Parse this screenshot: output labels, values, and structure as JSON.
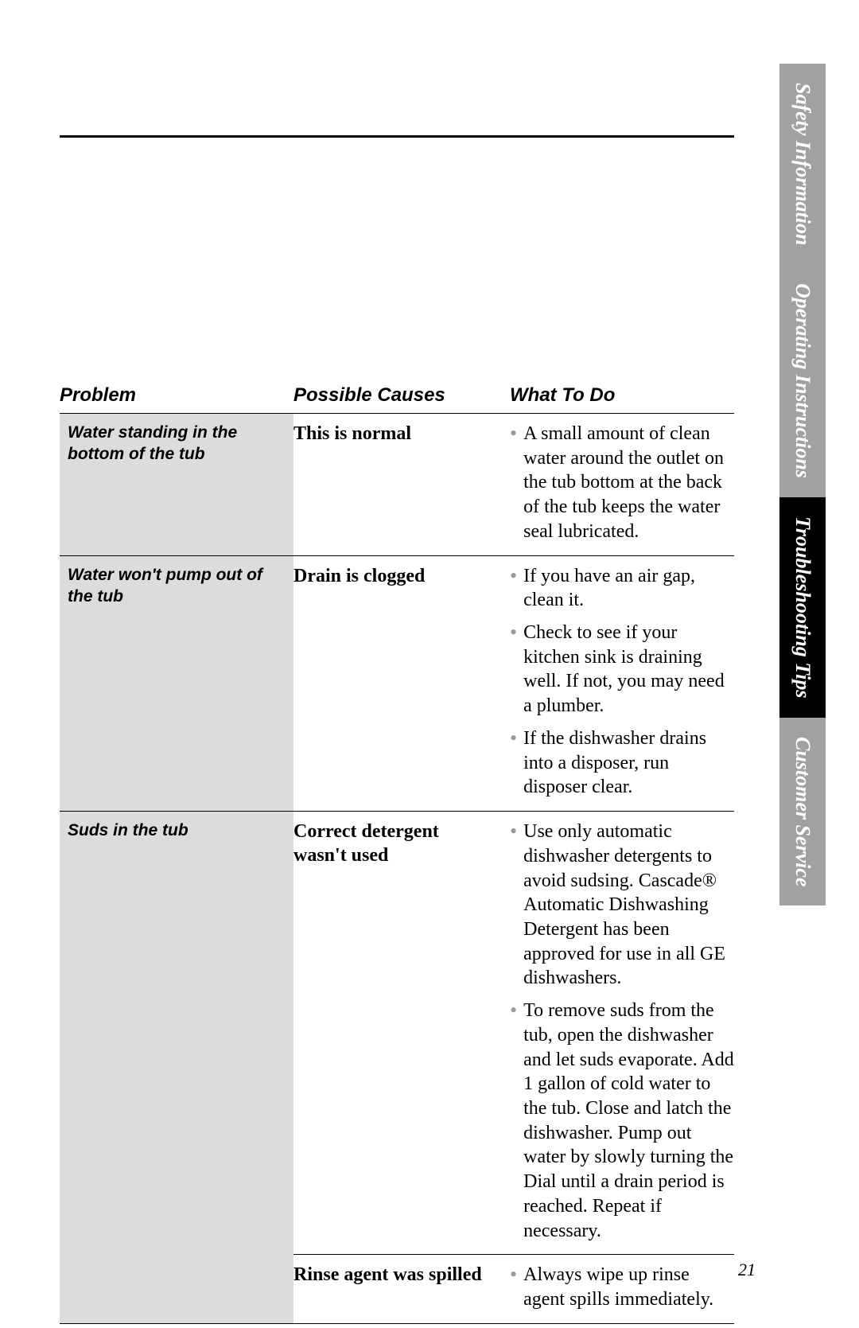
{
  "side_tabs": {
    "safety": "Safety Information",
    "operating": "Operating Instructions",
    "troubleshooting": "Troubleshooting Tips",
    "customer": "Customer Service"
  },
  "headers": {
    "problem": "Problem",
    "causes": "Possible Causes",
    "todo": "What To Do"
  },
  "rows": [
    {
      "problem": "Water standing in the bottom of the tub",
      "causes": [
        {
          "cause": "This is normal",
          "todos": [
            "A small amount of clean water around the outlet on the tub bottom at the back of the tub keeps the water seal lubricated."
          ]
        }
      ]
    },
    {
      "problem": "Water won't pump out of the tub",
      "causes": [
        {
          "cause": "Drain is clogged",
          "todos": [
            "If you have an air gap, clean it.",
            "Check to see if your kitchen sink is draining well. If not, you may need a plumber.",
            "If the dishwasher drains into a disposer, run disposer clear."
          ]
        }
      ]
    },
    {
      "problem": "Suds in the tub",
      "causes": [
        {
          "cause": "Correct detergent wasn't used",
          "todos": [
            "Use only automatic dishwasher detergents to avoid sudsing. Cascade® Automatic Dishwashing Detergent has been approved for use in all GE dishwashers.",
            "To remove suds from the tub, open the dishwasher and let suds evaporate. Add 1 gallon of cold water to the tub. Close and latch the dishwasher. Pump out water by slowly turning the Dial until a drain period is reached. Repeat if necessary."
          ]
        },
        {
          "cause": "Rinse agent was spilled",
          "todos": [
            "Always wipe up rinse agent spills immediately."
          ]
        }
      ]
    }
  ],
  "page_number": "21",
  "colors": {
    "gray_tab": "#a1a1a1",
    "black_tab": "#000000",
    "problem_bg": "#dcdcdc",
    "bullet": "#999999"
  }
}
